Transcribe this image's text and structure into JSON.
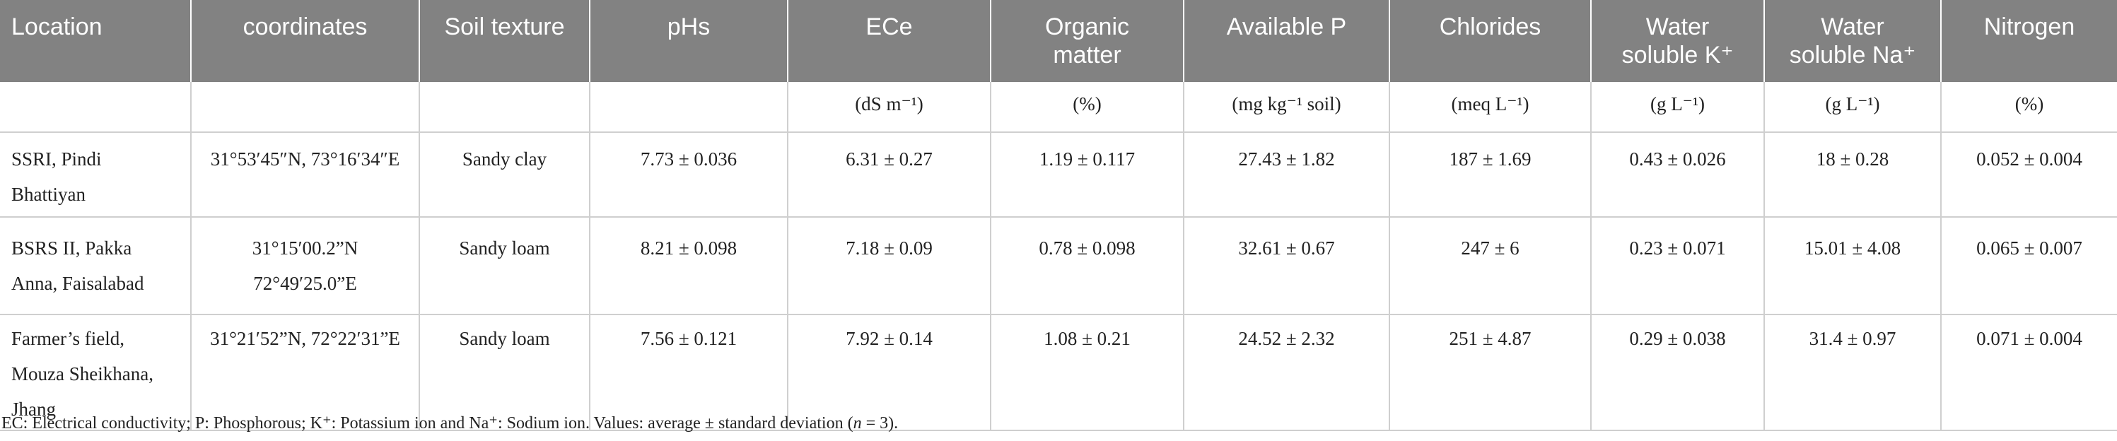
{
  "headers": [
    [
      "Location"
    ],
    [
      "coordinates"
    ],
    [
      "Soil texture"
    ],
    [
      "pHs"
    ],
    [
      "ECe"
    ],
    [
      "Organic",
      "matter"
    ],
    [
      "Available P"
    ],
    [
      "Chlorides"
    ],
    [
      "Water",
      "soluble K⁺"
    ],
    [
      "Water",
      "soluble Na⁺"
    ],
    [
      "Nitrogen"
    ]
  ],
  "units": [
    "",
    "",
    "",
    "",
    "(dS m⁻¹)",
    "(%)",
    "(mg kg⁻¹ soil)",
    "(meq L⁻¹)",
    "(g L⁻¹)",
    "(g L⁻¹)",
    "(%)"
  ],
  "rows": [
    {
      "location": [
        "SSRI, Pindi",
        "Bhattiyan"
      ],
      "coordinates": [
        "31°53′45″N, 73°16′34″E"
      ],
      "values": [
        "Sandy clay",
        "7.73 ± 0.036",
        "6.31 ± 0.27",
        "1.19 ± 0.117",
        "27.43 ± 1.82",
        "187 ± 1.69",
        "0.43 ± 0.026",
        "18 ± 0.28",
        "0.052 ± 0.004"
      ]
    },
    {
      "location": [
        "BSRS II, Pakka",
        "Anna, Faisalabad"
      ],
      "coordinates": [
        "31°15′00.2”N",
        "72°49′25.0”E"
      ],
      "values": [
        "Sandy loam",
        "8.21 ± 0.098",
        "7.18 ± 0.09",
        "0.78 ± 0.098",
        "32.61 ± 0.67",
        "247 ± 6",
        "0.23 ± 0.071",
        "15.01 ± 4.08",
        "0.065 ± 0.007"
      ]
    },
    {
      "location": [
        "Farmer’s field,",
        "Mouza Sheikhana,",
        "Jhang"
      ],
      "coordinates": [
        "31°21′52”N, 72°22′31”E"
      ],
      "values": [
        "Sandy loam",
        "7.56 ± 0.121",
        "7.92 ± 0.14",
        "1.08 ± 0.21",
        "24.52 ± 2.32",
        "251 ± 4.87",
        "0.29 ± 0.038",
        "31.4 ± 0.97",
        "0.071 ± 0.004"
      ]
    }
  ],
  "footnote": {
    "text": "EC: Electrical conductivity; P: Phosphorous; K⁺: Potassium ion and Na⁺: Sodium ion. Values: average ± standard deviation (",
    "italic": "n",
    "end": " = 3)."
  }
}
